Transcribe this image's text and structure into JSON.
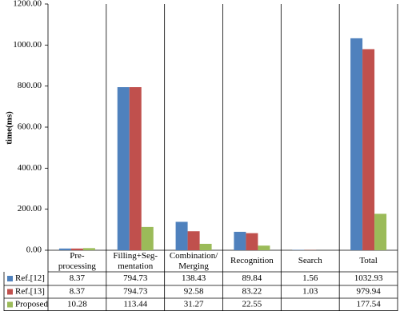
{
  "chart_data": {
    "type": "bar",
    "y_label": "time(ms)",
    "categories": [
      "Pre-\nprocessing",
      "Filling+Seg-\nmentation",
      "Combination/\nMerging",
      "Recognition",
      "Search",
      "Total"
    ],
    "series": [
      {
        "name": "Ref.[12]",
        "color": "#4f81bd",
        "values": [
          8.37,
          794.73,
          138.43,
          89.84,
          1.56,
          1032.93
        ]
      },
      {
        "name": "Ref.[13]",
        "color": "#c0504d",
        "values": [
          8.37,
          794.73,
          92.58,
          83.22,
          1.03,
          979.94
        ]
      },
      {
        "name": "Proposed",
        "color": "#9bbb59",
        "values": [
          10.28,
          113.44,
          31.27,
          22.55,
          null,
          177.54
        ]
      }
    ],
    "ylim": [
      0,
      1200
    ],
    "yticks": [
      {
        "value": 0,
        "label": "0.00"
      },
      {
        "value": 200,
        "label": "200.00"
      },
      {
        "value": 400,
        "label": "400.00"
      },
      {
        "value": 600,
        "label": "600.00"
      },
      {
        "value": 800,
        "label": "800.00"
      },
      {
        "value": 1000,
        "label": "1000.00"
      },
      {
        "value": 1200,
        "label": "1200.00"
      }
    ],
    "grid": false
  }
}
